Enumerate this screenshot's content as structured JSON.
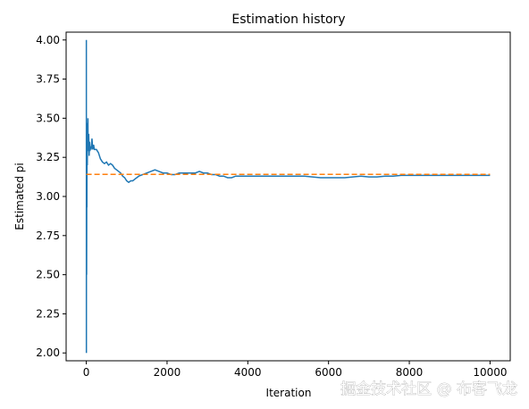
{
  "chart_data": {
    "type": "line",
    "title": "Estimation history",
    "xlabel": "Iteration",
    "ylabel": "Estimated pi",
    "xlim": [
      -500,
      10500
    ],
    "ylim": [
      1.95,
      4.05
    ],
    "x_ticks": [
      0,
      2000,
      4000,
      6000,
      8000,
      10000
    ],
    "x_tick_labels": [
      "0",
      "2000",
      "4000",
      "6000",
      "8000",
      "10000"
    ],
    "y_ticks": [
      2.0,
      2.25,
      2.5,
      2.75,
      3.0,
      3.25,
      3.5,
      3.75,
      4.0
    ],
    "y_tick_labels": [
      "2.00",
      "2.25",
      "2.50",
      "2.75",
      "3.00",
      "3.25",
      "3.50",
      "3.75",
      "4.00"
    ],
    "grid": false,
    "series": [
      {
        "color": "#1f77b4",
        "style": "solid",
        "x": [
          1,
          2,
          3,
          4,
          5,
          6,
          8,
          10,
          12,
          15,
          18,
          20,
          25,
          30,
          35,
          40,
          45,
          50,
          60,
          70,
          80,
          90,
          100,
          120,
          140,
          160,
          180,
          200,
          250,
          300,
          350,
          400,
          450,
          500,
          550,
          600,
          650,
          700,
          750,
          800,
          850,
          900,
          950,
          1000,
          1050,
          1100,
          1150,
          1200,
          1300,
          1400,
          1500,
          1600,
          1700,
          1800,
          1900,
          2000,
          2100,
          2200,
          2300,
          2400,
          2500,
          2600,
          2700,
          2800,
          2900,
          3000,
          3100,
          3200,
          3300,
          3400,
          3500,
          3600,
          3700,
          3800,
          4000,
          4200,
          4400,
          4600,
          4800,
          5000,
          5200,
          5400,
          5600,
          5800,
          6000,
          6200,
          6400,
          6600,
          6800,
          7000,
          7200,
          7400,
          7600,
          7800,
          8000,
          8200,
          8400,
          8600,
          8800,
          9000,
          9200,
          9400,
          9600,
          9800,
          10000
        ],
        "y": [
          4.0,
          2.0,
          2.67,
          3.0,
          3.2,
          2.67,
          2.5,
          2.8,
          3.33,
          2.93,
          3.33,
          3.4,
          3.2,
          3.47,
          3.31,
          3.5,
          3.29,
          3.36,
          3.4,
          3.26,
          3.35,
          3.29,
          3.32,
          3.3,
          3.37,
          3.3,
          3.33,
          3.3,
          3.3,
          3.28,
          3.24,
          3.22,
          3.21,
          3.22,
          3.2,
          3.21,
          3.2,
          3.18,
          3.17,
          3.16,
          3.15,
          3.13,
          3.12,
          3.1,
          3.09,
          3.1,
          3.1,
          3.11,
          3.13,
          3.14,
          3.15,
          3.16,
          3.17,
          3.16,
          3.15,
          3.15,
          3.14,
          3.14,
          3.15,
          3.15,
          3.15,
          3.15,
          3.15,
          3.16,
          3.15,
          3.15,
          3.14,
          3.14,
          3.13,
          3.13,
          3.12,
          3.12,
          3.13,
          3.13,
          3.13,
          3.13,
          3.13,
          3.13,
          3.13,
          3.13,
          3.13,
          3.13,
          3.125,
          3.12,
          3.12,
          3.12,
          3.12,
          3.125,
          3.13,
          3.125,
          3.125,
          3.13,
          3.13,
          3.135,
          3.135,
          3.135,
          3.135,
          3.135,
          3.135,
          3.135,
          3.135,
          3.135,
          3.135,
          3.135,
          3.135
        ]
      },
      {
        "color": "#ff7f0e",
        "style": "dashed",
        "x": [
          0,
          10000
        ],
        "y": [
          3.14159,
          3.14159
        ]
      }
    ]
  },
  "watermark": {
    "text": "掘金技术社区 @ 布客飞龙"
  }
}
